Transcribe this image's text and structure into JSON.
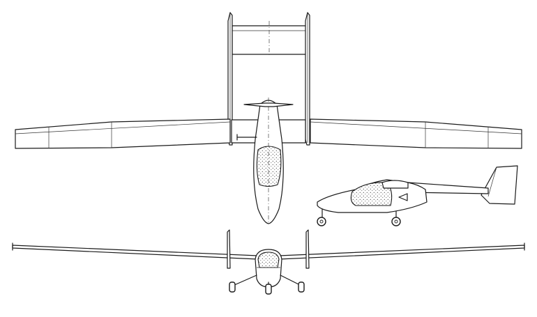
{
  "drawing": {
    "type": "three-view aircraft line drawing",
    "views": [
      {
        "name": "plan",
        "icon": "aircraft-plan-view"
      },
      {
        "name": "side",
        "icon": "aircraft-side-view"
      },
      {
        "name": "front",
        "icon": "aircraft-front-view"
      }
    ],
    "colors": {
      "line": "#1a1a1a",
      "background": "#ffffff"
    }
  }
}
